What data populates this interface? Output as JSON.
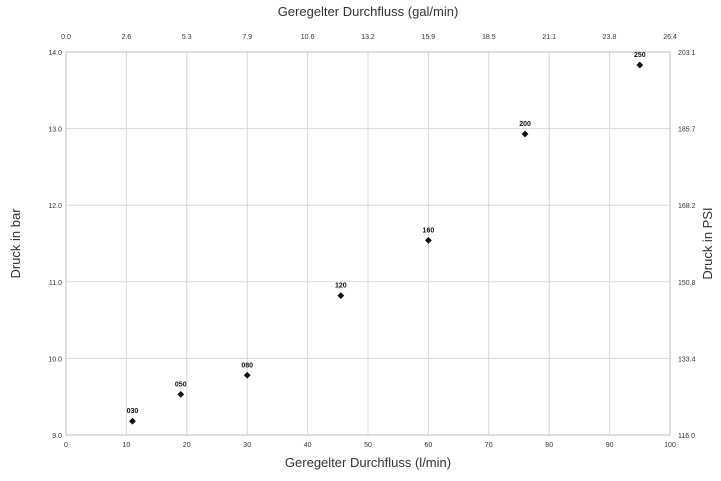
{
  "chart_data": {
    "type": "scatter",
    "title": "",
    "xlabel": "Geregelter Durchfluss (l/min)",
    "ylabel": "Druck in bar",
    "x2label": "Geregelter Durchfluss (gal/min)",
    "y2label": "Druck in PSI",
    "xlim": [
      0,
      100
    ],
    "ylim": [
      9,
      14
    ],
    "x_ticks": [
      "0",
      "10",
      "20",
      "30",
      "40",
      "50",
      "60",
      "70",
      "80",
      "90",
      "100"
    ],
    "y_ticks": [
      "9.0",
      "10.0",
      "11.0",
      "12.0",
      "13.0",
      "14.0"
    ],
    "x2_ticks": [
      "0.0",
      "2.6",
      "5.3",
      "7.9",
      "10.6",
      "13.2",
      "15.9",
      "18.5",
      "21.1",
      "23.8",
      "26.4"
    ],
    "y2_ticks": [
      "116.0",
      "133.4",
      "150.8",
      "168.2",
      "185.7",
      "203.1"
    ],
    "grid": true,
    "marker": "diamond",
    "marker_color": "#111111",
    "points": [
      {
        "label": "030",
        "x": 11,
        "y": 9.18
      },
      {
        "label": "050",
        "x": 19,
        "y": 9.53
      },
      {
        "label": "080",
        "x": 30,
        "y": 9.78
      },
      {
        "label": "120",
        "x": 45.5,
        "y": 10.82
      },
      {
        "label": "160",
        "x": 60,
        "y": 11.54
      },
      {
        "label": "200",
        "x": 76,
        "y": 12.93
      },
      {
        "label": "250",
        "x": 95,
        "y": 13.83
      }
    ]
  }
}
